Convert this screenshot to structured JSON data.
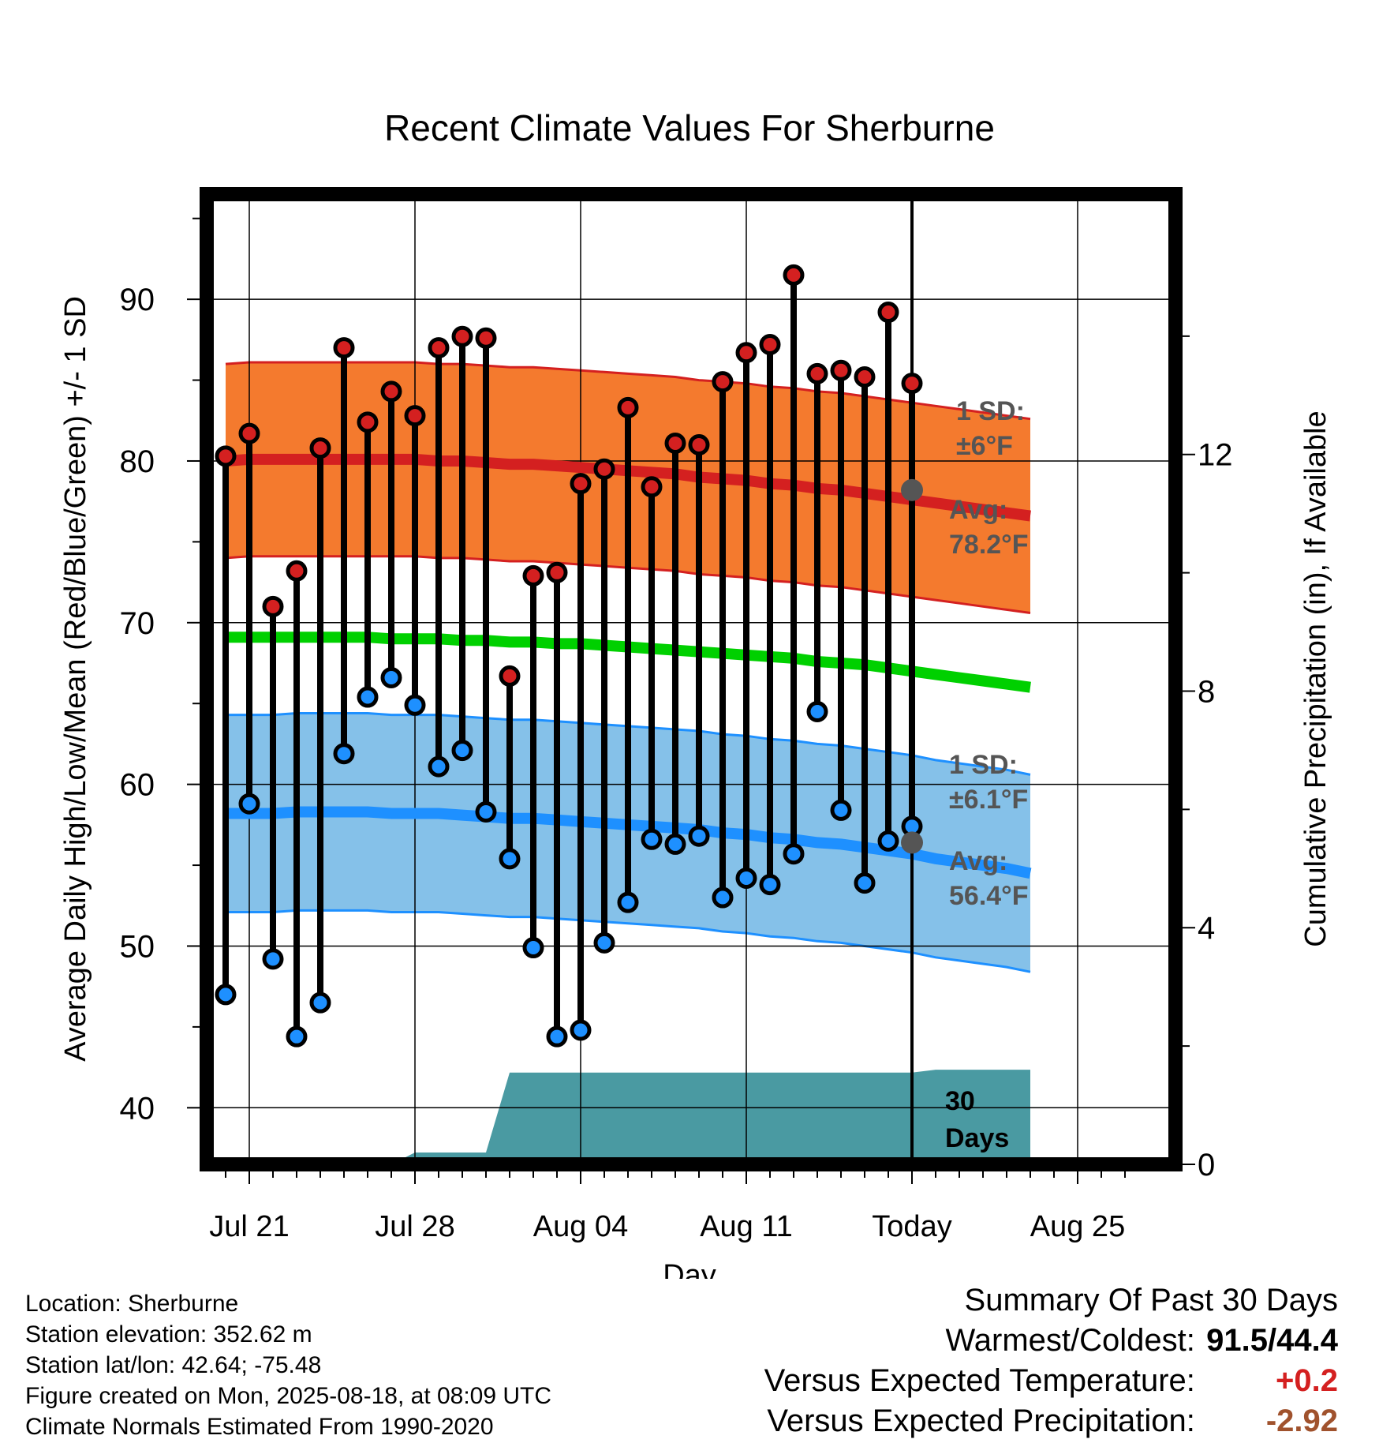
{
  "chart_data": {
    "type": "line",
    "title": "Recent Climate Values For Sherburne",
    "xlabel": "Day",
    "ylabel": "Average Daily High/Low/Mean (Red/Blue/Green) +/- 1 SD",
    "y2label": "Cumulative Precipitation (in), If Available",
    "ylim": [
      36.5,
      96.5
    ],
    "y2lim": [
      0,
      16.4
    ],
    "x_tick_labels": [
      "Jul 21",
      "Jul 28",
      "Aug 04",
      "Aug 11",
      "Today",
      "Aug 25"
    ],
    "y_ticks": [
      40,
      50,
      60,
      70,
      80,
      90
    ],
    "y2_ticks": [
      0,
      4,
      8,
      12
    ],
    "grid": true,
    "today_label": "30 Days",
    "days": [
      "Jul 20",
      "Jul 21",
      "Jul 22",
      "Jul 23",
      "Jul 24",
      "Jul 25",
      "Jul 26",
      "Jul 27",
      "Jul 28",
      "Jul 29",
      "Jul 30",
      "Jul 31",
      "Aug 01",
      "Aug 02",
      "Aug 03",
      "Aug 04",
      "Aug 05",
      "Aug 06",
      "Aug 07",
      "Aug 08",
      "Aug 09",
      "Aug 10",
      "Aug 11",
      "Aug 12",
      "Aug 13",
      "Aug 14",
      "Aug 15",
      "Aug 16",
      "Aug 17",
      "Aug 18",
      "Aug 19",
      "Aug 20",
      "Aug 21",
      "Aug 22",
      "Aug 23",
      "Aug 24",
      "Aug 25",
      "Aug 26",
      "Aug 27"
    ],
    "daily_high": [
      80.3,
      81.7,
      71.0,
      73.2,
      80.8,
      87.0,
      82.4,
      84.3,
      82.8,
      87.0,
      87.7,
      87.6,
      66.7,
      72.9,
      73.1,
      78.6,
      79.5,
      83.3,
      78.4,
      81.1,
      81.0,
      84.9,
      86.7,
      87.2,
      91.5,
      85.4,
      85.6,
      85.2,
      89.2,
      84.8
    ],
    "daily_low": [
      47.0,
      58.8,
      49.2,
      44.4,
      46.5,
      61.9,
      65.4,
      66.6,
      64.9,
      61.1,
      62.1,
      58.3,
      55.4,
      49.9,
      44.4,
      44.8,
      50.2,
      52.7,
      56.6,
      56.3,
      56.8,
      53.0,
      54.2,
      53.8,
      55.7,
      64.5,
      58.4,
      53.9,
      56.5,
      57.4
    ],
    "series": [
      {
        "name": "Normal High",
        "color": "#d42020",
        "values": [
          80.0,
          80.1,
          80.1,
          80.1,
          80.1,
          80.1,
          80.1,
          80.1,
          80.1,
          80.0,
          80.0,
          79.9,
          79.8,
          79.8,
          79.7,
          79.6,
          79.5,
          79.4,
          79.3,
          79.2,
          79.0,
          78.9,
          78.8,
          78.6,
          78.5,
          78.3,
          78.2,
          78.0,
          77.8,
          77.6,
          77.4,
          77.2,
          77.0,
          76.8,
          76.6
        ]
      },
      {
        "name": "Normal Low",
        "color": "#1e90ff",
        "values": [
          58.2,
          58.2,
          58.2,
          58.3,
          58.3,
          58.3,
          58.3,
          58.2,
          58.2,
          58.2,
          58.1,
          58.0,
          57.9,
          57.9,
          57.8,
          57.7,
          57.6,
          57.5,
          57.4,
          57.3,
          57.2,
          57.0,
          56.9,
          56.7,
          56.6,
          56.4,
          56.3,
          56.1,
          55.9,
          55.7,
          55.4,
          55.2,
          55.0,
          54.8,
          54.5
        ]
      },
      {
        "name": "Normal Mean",
        "color": "#00d000",
        "values": [
          69.1,
          69.1,
          69.1,
          69.1,
          69.1,
          69.1,
          69.1,
          69.0,
          69.0,
          69.0,
          68.9,
          68.9,
          68.8,
          68.8,
          68.7,
          68.7,
          68.6,
          68.5,
          68.4,
          68.3,
          68.2,
          68.1,
          68.0,
          67.9,
          67.8,
          67.6,
          67.5,
          67.4,
          67.2,
          67.0,
          66.8,
          66.6,
          66.4,
          66.2,
          66.0
        ]
      }
    ],
    "precip_cumulative": [
      0,
      0,
      0,
      0,
      0,
      0,
      0,
      0,
      0.2,
      0.2,
      0.2,
      0.2,
      1.55,
      1.55,
      1.55,
      1.55,
      1.55,
      1.55,
      1.55,
      1.55,
      1.55,
      1.55,
      1.55,
      1.55,
      1.55,
      1.55,
      1.55,
      1.55,
      1.55,
      1.55,
      1.6,
      1.6,
      1.6,
      1.6,
      1.6
    ],
    "precip_color": "#4a9aa2",
    "high_sd_label": "1 SD:\n±6°F",
    "high_avg_label": "Avg:\n78.2°F",
    "low_sd_label": "1 SD:\n±6.1°F",
    "low_avg_label": "Avg:\n56.4°F",
    "high_sd": 6,
    "low_sd": 6.1
  },
  "footer": {
    "location": "Location: Sherburne",
    "elevation": "Station elevation: 352.62 m",
    "latlon": "Station lat/lon: 42.64; -75.48",
    "created": "Figure created on Mon, 2025-08-18, at 08:09 UTC",
    "normals": "Climate Normals Estimated From 1990-2020"
  },
  "summary": {
    "heading": "Summary Of Past 30 Days",
    "warm_cold_label": "Warmest/Coldest:",
    "warm_cold_value": "91.5/44.4",
    "temp_label": "Versus Expected Temperature:",
    "temp_value": "+0.2",
    "temp_color": "#d42020",
    "precip_label": "Versus Expected Precipitation:",
    "precip_value": "-2.92",
    "precip_color": "#a0522d"
  }
}
